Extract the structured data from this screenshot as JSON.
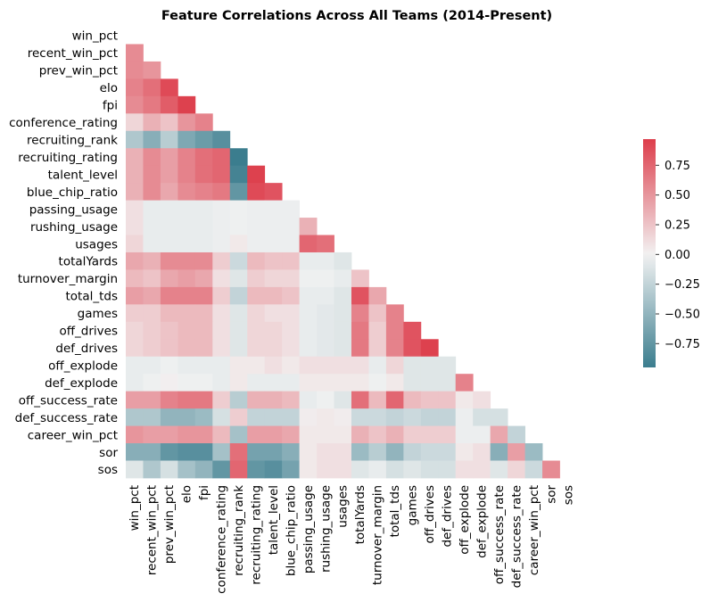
{
  "chart_data": {
    "type": "heatmap",
    "title": "Feature Correlations Across All Teams (2014-Present)",
    "variables": [
      "win_pct",
      "recent_win_pct",
      "prev_win_pct",
      "elo",
      "fpi",
      "conference_rating",
      "recruiting_rank",
      "recruiting_rating",
      "talent_level",
      "blue_chip_ratio",
      "passing_usage",
      "rushing_usage",
      "usages",
      "totalYards",
      "turnover_margin",
      "total_tds",
      "games",
      "off_drives",
      "def_drives",
      "off_explode",
      "def_explode",
      "off_success_rate",
      "def_success_rate",
      "career_win_pct",
      "sor",
      "sos"
    ],
    "mask": "upper-triangle-including-diagonal",
    "colormap": {
      "low": "#3b7d8e",
      "mid": "#f2f2f2",
      "high": "#dd3d4b"
    },
    "colorbar": {
      "range": [
        -0.95,
        0.97
      ],
      "ticks": [
        "0.75",
        "0.50",
        "0.25",
        "0.00",
        "−0.25",
        "−0.50",
        "−0.75"
      ]
    },
    "rows": [
      [],
      [
        0.55
      ],
      [
        0.55,
        0.5
      ],
      [
        0.6,
        0.7,
        0.9
      ],
      [
        0.55,
        0.65,
        0.8,
        0.95
      ],
      [
        0.15,
        0.35,
        0.25,
        0.5,
        0.6
      ],
      [
        -0.35,
        -0.55,
        -0.3,
        -0.6,
        -0.7,
        -0.8
      ],
      [
        0.35,
        0.55,
        0.45,
        0.6,
        0.7,
        0.75,
        -0.95
      ],
      [
        0.35,
        0.55,
        0.45,
        0.6,
        0.7,
        0.75,
        -0.9,
        0.95
      ],
      [
        0.35,
        0.55,
        0.4,
        0.55,
        0.6,
        0.65,
        -0.75,
        0.9,
        0.85
      ],
      [
        0.1,
        -0.05,
        -0.05,
        -0.05,
        -0.05,
        -0.03,
        -0.02,
        -0.03,
        -0.03,
        -0.03
      ],
      [
        0.1,
        -0.05,
        -0.05,
        -0.05,
        -0.05,
        -0.03,
        -0.02,
        -0.03,
        -0.03,
        -0.03,
        0.35
      ],
      [
        0.15,
        -0.05,
        -0.05,
        -0.05,
        -0.05,
        -0.03,
        0.05,
        -0.03,
        -0.03,
        -0.03,
        0.75,
        0.7
      ],
      [
        0.4,
        0.35,
        0.55,
        0.55,
        0.55,
        0.2,
        -0.2,
        0.3,
        0.25,
        0.25,
        -0.05,
        -0.05,
        -0.1
      ],
      [
        0.3,
        0.25,
        0.4,
        0.45,
        0.4,
        0.1,
        -0.1,
        0.2,
        0.15,
        0.15,
        -0.02,
        -0.02,
        -0.05,
        0.25
      ],
      [
        0.45,
        0.4,
        0.6,
        0.6,
        0.6,
        0.2,
        -0.25,
        0.3,
        0.3,
        0.25,
        -0.05,
        -0.05,
        -0.1,
        0.85,
        0.4
      ],
      [
        0.2,
        0.2,
        0.3,
        0.3,
        0.3,
        0.1,
        -0.1,
        0.15,
        0.1,
        0.1,
        -0.05,
        -0.08,
        -0.1,
        0.6,
        0.25,
        0.6
      ],
      [
        0.15,
        0.2,
        0.25,
        0.3,
        0.3,
        0.1,
        -0.1,
        0.15,
        0.15,
        0.1,
        -0.05,
        -0.08,
        -0.1,
        0.65,
        0.2,
        0.6,
        0.85
      ],
      [
        0.15,
        0.2,
        0.25,
        0.3,
        0.3,
        0.1,
        -0.1,
        0.15,
        0.15,
        0.1,
        -0.05,
        -0.08,
        -0.1,
        0.65,
        0.2,
        0.6,
        0.85,
        0.95
      ],
      [
        -0.05,
        -0.05,
        -0.02,
        -0.05,
        -0.05,
        -0.05,
        0.05,
        0.05,
        0.1,
        0.05,
        0.1,
        0.1,
        0.1,
        0.1,
        -0.05,
        0.15,
        -0.1,
        -0.1,
        -0.1
      ],
      [
        -0.05,
        -0.02,
        0.02,
        -0.02,
        -0.02,
        -0.05,
        0.05,
        -0.05,
        -0.05,
        -0.05,
        0.05,
        0.05,
        0.05,
        0.05,
        -0.02,
        0.05,
        -0.1,
        -0.1,
        -0.1,
        0.6
      ],
      [
        0.45,
        0.45,
        0.6,
        0.65,
        0.65,
        0.2,
        -0.3,
        0.35,
        0.35,
        0.3,
        -0.05,
        -0.02,
        -0.1,
        0.7,
        0.3,
        0.75,
        0.3,
        0.25,
        0.25,
        0.05,
        0.1
      ],
      [
        -0.35,
        -0.35,
        -0.5,
        -0.5,
        -0.45,
        -0.15,
        0.2,
        -0.25,
        -0.25,
        -0.25,
        0.03,
        0.05,
        0.03,
        -0.2,
        -0.2,
        -0.25,
        -0.2,
        -0.25,
        -0.25,
        -0.03,
        -0.15,
        -0.15
      ],
      [
        0.5,
        0.45,
        0.45,
        0.5,
        0.5,
        0.3,
        -0.4,
        0.45,
        0.45,
        0.4,
        0.05,
        0.05,
        0.05,
        0.35,
        0.25,
        0.35,
        0.2,
        0.2,
        0.2,
        -0.03,
        -0.03,
        0.4,
        -0.25
      ],
      [
        -0.55,
        -0.55,
        -0.75,
        -0.8,
        -0.8,
        -0.4,
        0.7,
        -0.65,
        -0.65,
        -0.55,
        0.05,
        0.1,
        0.1,
        -0.45,
        -0.3,
        -0.5,
        -0.25,
        -0.2,
        -0.2,
        0.05,
        0.1,
        -0.55,
        0.45,
        -0.45
      ],
      [
        -0.1,
        -0.35,
        -0.15,
        -0.4,
        -0.5,
        -0.75,
        0.75,
        -0.75,
        -0.8,
        -0.65,
        0.05,
        0.1,
        0.1,
        -0.1,
        -0.05,
        -0.15,
        -0.1,
        -0.15,
        -0.15,
        0.1,
        0.1,
        -0.1,
        0.15,
        -0.2,
        0.55
      ]
    ]
  }
}
